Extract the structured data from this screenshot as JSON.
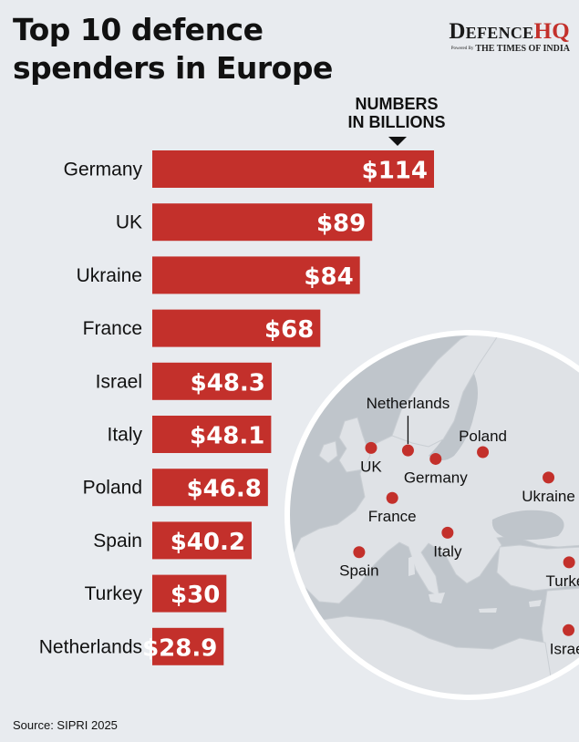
{
  "title_lines": [
    "Top 10 defence",
    "spenders in Europe"
  ],
  "brand": {
    "name_part1": "Defence",
    "name_part2": "HQ",
    "powered_by": "Powered By",
    "partner": "THE TIMES OF INDIA"
  },
  "unit_note": [
    "NUMBERS",
    "IN BILLIONS"
  ],
  "source": "Source: SIPRI 2025",
  "colors": {
    "bar": "#c3302b",
    "background": "#e8ebef",
    "map_land": "#dfe2e6",
    "map_sea": "#bfc5cb",
    "marker": "#c3302b"
  },
  "chart_data": {
    "type": "bar",
    "orientation": "horizontal",
    "categories": [
      "Germany",
      "UK",
      "Ukraine",
      "France",
      "Israel",
      "Italy",
      "Poland",
      "Spain",
      "Turkey",
      "Netherlands"
    ],
    "values": [
      114,
      89,
      84,
      68,
      48.3,
      48.1,
      46.8,
      40.2,
      30,
      28.9
    ],
    "value_labels": [
      "$114",
      "$89",
      "$84",
      "$68",
      "$48.3",
      "$48.1",
      "$46.8",
      "$40.2",
      "$30",
      "$28.9"
    ],
    "xlim": [
      0,
      114
    ]
  },
  "map": {
    "markers": [
      {
        "name": "UK",
        "lon": -1.5,
        "lat": 52.5,
        "label_side": "below"
      },
      {
        "name": "Netherlands",
        "lon": 5.3,
        "lat": 52.2,
        "label_side": "above-leader"
      },
      {
        "name": "Germany",
        "lon": 10.4,
        "lat": 51.2,
        "label_side": "below"
      },
      {
        "name": "Poland",
        "lon": 19.1,
        "lat": 52.0,
        "label_side": "above"
      },
      {
        "name": "Ukraine",
        "lon": 31.2,
        "lat": 49.0,
        "label_side": "below"
      },
      {
        "name": "France",
        "lon": 2.4,
        "lat": 46.6,
        "label_side": "below"
      },
      {
        "name": "Italy",
        "lon": 12.6,
        "lat": 42.5,
        "label_side": "below"
      },
      {
        "name": "Spain",
        "lon": -3.7,
        "lat": 40.2,
        "label_side": "below"
      },
      {
        "name": "Turkey",
        "lon": 35.0,
        "lat": 39.0,
        "label_side": "below"
      },
      {
        "name": "Israel",
        "lon": 34.9,
        "lat": 31.0,
        "label_side": "below"
      }
    ]
  }
}
